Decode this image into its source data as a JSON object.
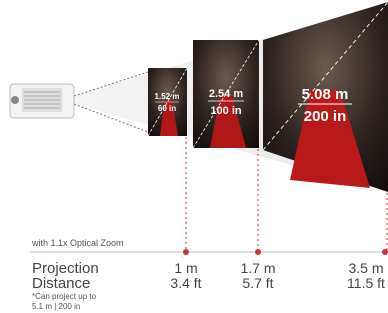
{
  "screens": [
    {
      "width": "1.52 m",
      "diagonal": "60 in"
    },
    {
      "width": "2.54 m",
      "diagonal": "100 in"
    },
    {
      "width": "5.08 m",
      "diagonal": "200 in"
    }
  ],
  "zoom_note": "with 1.1x Optical Zoom",
  "distance_label": [
    "Projection",
    "Distance"
  ],
  "footnote": [
    "*Can project up to",
    "5.1 m | 200 in"
  ],
  "distances": [
    {
      "metric": "1 m",
      "imperial": "3.4 ft"
    },
    {
      "metric": "1.7 m",
      "imperial": "5.7 ft"
    },
    {
      "metric": "3.5 m",
      "imperial": "11.5 ft"
    }
  ]
}
